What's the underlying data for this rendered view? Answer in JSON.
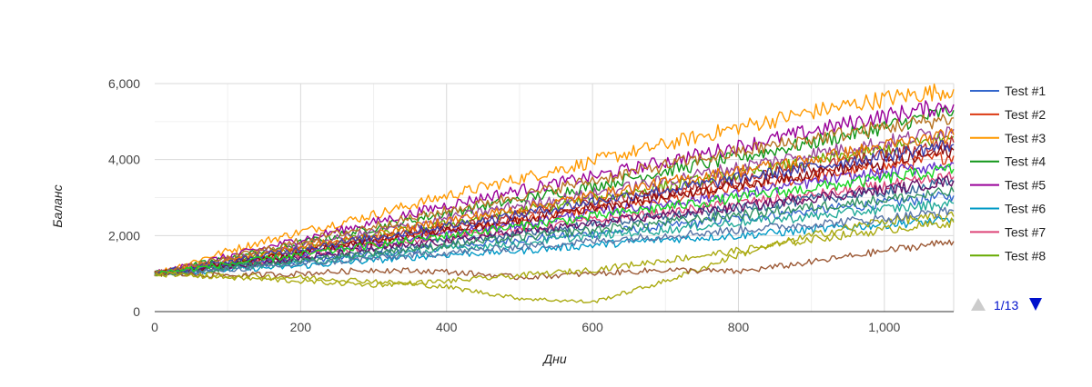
{
  "chart_data": {
    "type": "line",
    "title": "",
    "xlabel": "Дни",
    "ylabel": "Баланс",
    "xlim": [
      0,
      1095
    ],
    "ylim": [
      0,
      6000
    ],
    "x_ticks": [
      0,
      200,
      400,
      600,
      800,
      1000
    ],
    "x_tick_labels": [
      "0",
      "200",
      "400",
      "600",
      "800",
      "1,000"
    ],
    "y_ticks": [
      0,
      2000,
      4000,
      6000
    ],
    "y_tick_labels": [
      "0",
      "2,000",
      "4,000",
      "6,000"
    ],
    "grid": true,
    "legend_position": "right",
    "series": [
      {
        "name": "Test #1",
        "color": "#3366cc",
        "x": [
          0,
          100,
          200,
          300,
          400,
          500,
          600,
          700,
          800,
          900,
          1000,
          1095
        ],
        "y": [
          1000,
          1150,
          1350,
          1500,
          1700,
          1900,
          2050,
          2250,
          2450,
          2650,
          2850,
          3050
        ]
      },
      {
        "name": "Test #2",
        "color": "#dc3912",
        "x": [
          0,
          100,
          200,
          300,
          400,
          500,
          600,
          700,
          800,
          900,
          1000,
          1095
        ],
        "y": [
          1000,
          1250,
          1550,
          1850,
          2100,
          2400,
          2700,
          2950,
          3250,
          3550,
          3800,
          4100
        ]
      },
      {
        "name": "Test #3",
        "color": "#ff9900",
        "x": [
          0,
          100,
          200,
          300,
          400,
          500,
          600,
          700,
          800,
          900,
          1000,
          1095
        ],
        "y": [
          1000,
          1600,
          2100,
          2550,
          3050,
          3500,
          3950,
          4400,
          4850,
          5250,
          5600,
          5850
        ]
      },
      {
        "name": "Test #4",
        "color": "#109618",
        "x": [
          0,
          100,
          200,
          300,
          400,
          500,
          600,
          700,
          800,
          900,
          1000,
          1095
        ],
        "y": [
          1000,
          1400,
          1800,
          2200,
          2600,
          2950,
          3300,
          3700,
          4050,
          4450,
          4850,
          5300
        ]
      },
      {
        "name": "Test #5",
        "color": "#990099",
        "x": [
          0,
          100,
          200,
          300,
          400,
          500,
          600,
          700,
          800,
          900,
          1000,
          1095
        ],
        "y": [
          1000,
          1450,
          1900,
          2350,
          2800,
          3200,
          3550,
          3950,
          4350,
          4750,
          5150,
          5450
        ]
      },
      {
        "name": "Test #6",
        "color": "#0099c6",
        "x": [
          0,
          100,
          200,
          300,
          400,
          500,
          600,
          700,
          800,
          900,
          1000,
          1095
        ],
        "y": [
          1000,
          1100,
          1200,
          1350,
          1500,
          1600,
          1750,
          1900,
          2000,
          2150,
          2300,
          2400
        ]
      },
      {
        "name": "Test #7",
        "color": "#dd4477",
        "x": [
          0,
          100,
          200,
          300,
          400,
          500,
          600,
          700,
          800,
          900,
          1000,
          1095
        ],
        "y": [
          1000,
          1200,
          1450,
          1700,
          1950,
          2150,
          2400,
          2600,
          2850,
          3050,
          3300,
          3550
        ]
      },
      {
        "name": "Test #8",
        "color": "#66aa00",
        "x": [
          0,
          100,
          200,
          300,
          400,
          500,
          600,
          700,
          800,
          900,
          1000,
          1095
        ],
        "y": [
          1000,
          1300,
          1650,
          2000,
          2300,
          2650,
          2950,
          3300,
          3600,
          3950,
          4250,
          4600
        ]
      },
      {
        "color": "#b82e2e",
        "x": [
          0,
          100,
          200,
          300,
          400,
          500,
          600,
          700,
          800,
          900,
          1000,
          1095
        ],
        "y": [
          1000,
          1300,
          1600,
          1950,
          2250,
          2550,
          2850,
          3150,
          3500,
          3800,
          4100,
          4450
        ]
      },
      {
        "color": "#316395",
        "x": [
          0,
          100,
          200,
          300,
          400,
          500,
          600,
          700,
          800,
          900,
          1000,
          1095
        ],
        "y": [
          1000,
          1200,
          1400,
          1600,
          1850,
          2050,
          2300,
          2500,
          2700,
          2950,
          3150,
          3400
        ]
      },
      {
        "color": "#994499",
        "x": [
          0,
          100,
          200,
          300,
          400,
          500,
          600,
          700,
          800,
          900,
          1000,
          1095
        ],
        "y": [
          1000,
          1350,
          1750,
          2100,
          2450,
          2800,
          3100,
          3450,
          3800,
          4150,
          4450,
          4800
        ]
      },
      {
        "color": "#22aa99",
        "x": [
          0,
          100,
          200,
          300,
          400,
          500,
          600,
          700,
          800,
          900,
          1000,
          1095
        ],
        "y": [
          1000,
          1150,
          1300,
          1450,
          1650,
          1800,
          2000,
          2150,
          2350,
          2500,
          2700,
          2850
        ]
      },
      {
        "color": "#aaaa11",
        "x": [
          0,
          100,
          200,
          300,
          400,
          500,
          600,
          700,
          800,
          900,
          1000,
          1095
        ],
        "y": [
          1000,
          950,
          900,
          800,
          650,
          350,
          250,
          800,
          1500,
          2000,
          2400,
          2500
        ]
      },
      {
        "color": "#6633cc",
        "x": [
          0,
          100,
          200,
          300,
          400,
          500,
          600,
          700,
          800,
          900,
          1000,
          1095
        ],
        "y": [
          1000,
          1250,
          1500,
          1800,
          2050,
          2300,
          2600,
          2850,
          3100,
          3400,
          3650,
          3900
        ]
      },
      {
        "color": "#e67300",
        "x": [
          0,
          100,
          200,
          300,
          400,
          500,
          600,
          700,
          800,
          900,
          1000,
          1095
        ],
        "y": [
          1000,
          1350,
          1700,
          2000,
          2400,
          2700,
          3050,
          3400,
          3700,
          4000,
          4350,
          4650
        ]
      },
      {
        "color": "#8b0707",
        "x": [
          0,
          100,
          200,
          300,
          400,
          500,
          600,
          700,
          800,
          900,
          1000,
          1095
        ],
        "y": [
          1000,
          1250,
          1550,
          1850,
          2150,
          2400,
          2750,
          3050,
          3350,
          3650,
          3900,
          4250
        ]
      },
      {
        "color": "#651067",
        "x": [
          0,
          100,
          200,
          300,
          400,
          500,
          600,
          700,
          800,
          900,
          1000,
          1095
        ],
        "y": [
          1000,
          1200,
          1400,
          1650,
          1850,
          2100,
          2300,
          2550,
          2750,
          3000,
          3200,
          3450
        ]
      },
      {
        "color": "#329262",
        "x": [
          0,
          100,
          200,
          300,
          400,
          500,
          600,
          700,
          800,
          900,
          1000,
          1095
        ],
        "y": [
          1000,
          1150,
          1350,
          1550,
          1750,
          1950,
          2150,
          2350,
          2550,
          2750,
          2950,
          3150
        ]
      },
      {
        "color": "#5574a6",
        "x": [
          0,
          100,
          200,
          300,
          400,
          500,
          600,
          700,
          800,
          900,
          1000,
          1095
        ],
        "y": [
          1000,
          1100,
          1250,
          1400,
          1550,
          1700,
          1850,
          2000,
          2150,
          2300,
          2450,
          2650
        ]
      },
      {
        "color": "#3b3eac",
        "x": [
          0,
          100,
          200,
          300,
          400,
          500,
          600,
          700,
          800,
          900,
          1000,
          1095
        ],
        "y": [
          1000,
          1300,
          1650,
          1950,
          2250,
          2550,
          2900,
          3200,
          3500,
          3800,
          4100,
          4400
        ]
      },
      {
        "color": "#b77322",
        "x": [
          0,
          100,
          200,
          300,
          400,
          500,
          600,
          700,
          800,
          900,
          1000,
          1095
        ],
        "y": [
          1000,
          1400,
          1850,
          2250,
          2650,
          3050,
          3450,
          3850,
          4200,
          4550,
          4850,
          5100
        ]
      },
      {
        "color": "#16d620",
        "x": [
          0,
          100,
          200,
          300,
          400,
          500,
          600,
          700,
          800,
          900,
          1000,
          1095
        ],
        "y": [
          1000,
          1250,
          1500,
          1750,
          2000,
          2250,
          2500,
          2750,
          3000,
          3250,
          3500,
          3750
        ]
      },
      {
        "color": "#9c5935",
        "x": [
          0,
          100,
          200,
          300,
          400,
          500,
          600,
          700,
          800,
          900,
          1000,
          1095
        ],
        "y": [
          1000,
          950,
          1000,
          1100,
          1050,
          900,
          1000,
          1100,
          1050,
          1300,
          1600,
          1850
        ]
      },
      {
        "color": "#aaaa11",
        "x": [
          0,
          100,
          200,
          300,
          400,
          500,
          600,
          700,
          800,
          900,
          1000,
          1095
        ],
        "y": [
          1000,
          900,
          800,
          700,
          800,
          950,
          1100,
          1350,
          1600,
          1900,
          2150,
          2350
        ]
      }
    ]
  },
  "legend": {
    "page_label": "1/13"
  }
}
